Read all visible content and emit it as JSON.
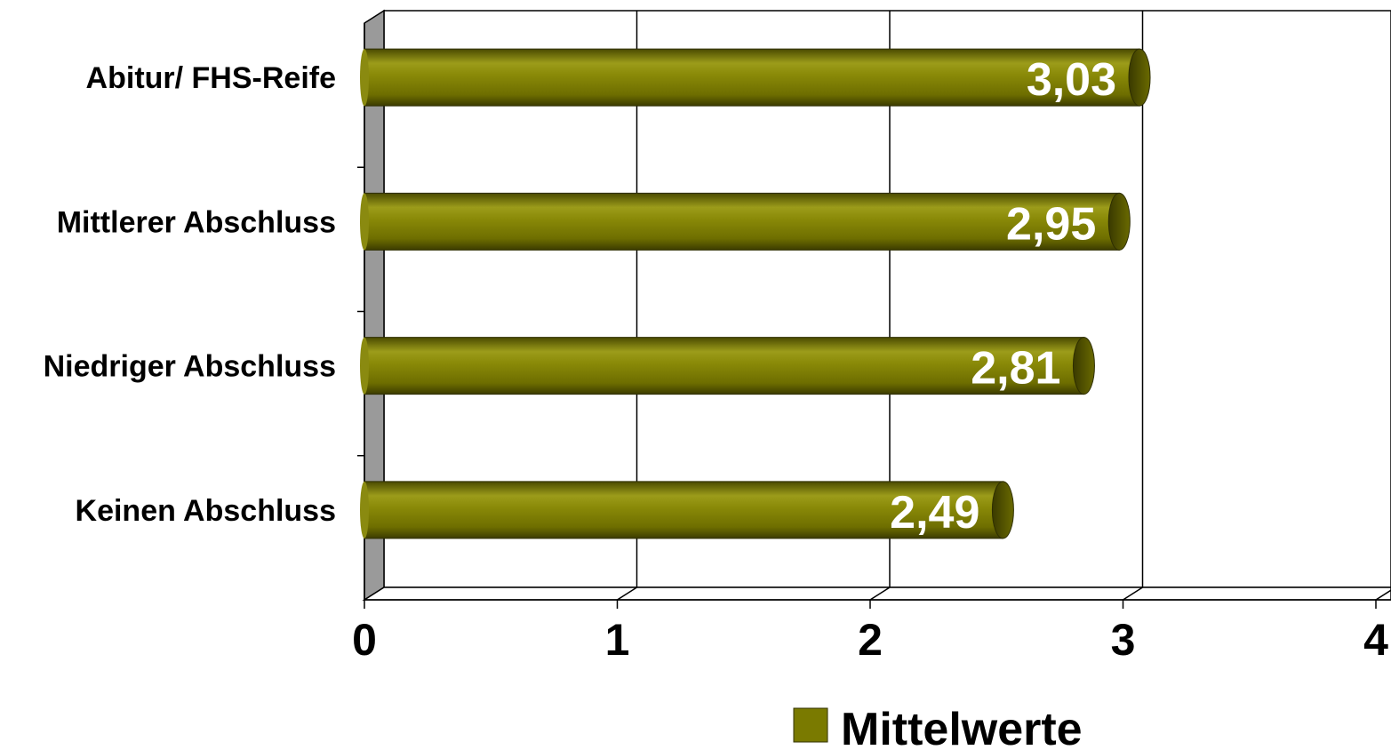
{
  "chart_data": {
    "type": "bar",
    "orientation": "horizontal",
    "categories": [
      "Abitur/ FHS-Reife",
      "Mittlerer Abschluss",
      "Niedriger Abschluss",
      "Keinen Abschluss"
    ],
    "series": [
      {
        "name": "Mittelwerte",
        "values": [
          3.03,
          2.95,
          2.81,
          2.49
        ],
        "color": "#7a7a00"
      }
    ],
    "data_labels": [
      "3,03",
      "2,95",
      "2,81",
      "2,49"
    ],
    "x_ticks": [
      "0",
      "1",
      "2",
      "3",
      "4"
    ],
    "xlim": [
      0,
      4
    ],
    "grid": true,
    "legend_position": "bottom",
    "style": "3d-cylinder"
  }
}
